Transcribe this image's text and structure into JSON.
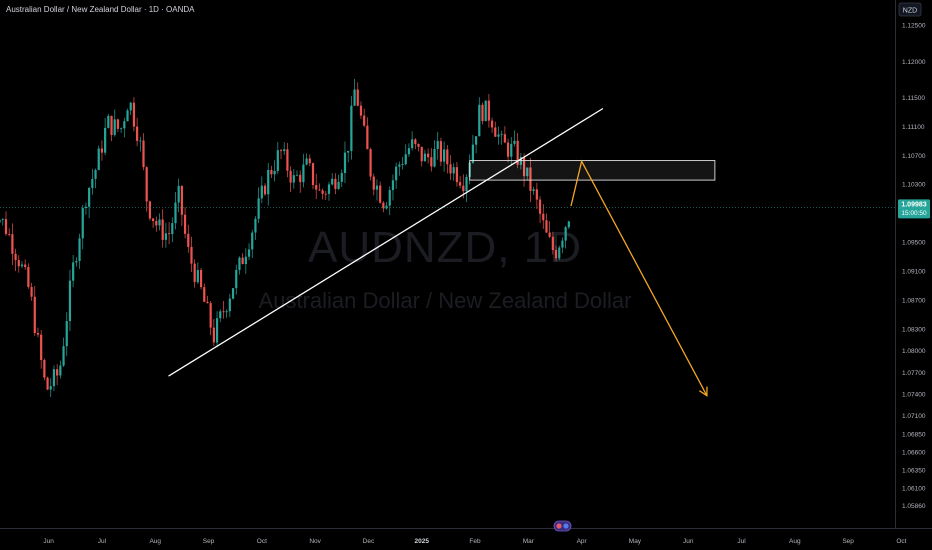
{
  "header": {
    "title": "Australian Dollar / New Zealand Dollar · 1D · OANDA",
    "currency_badge": "NZD"
  },
  "watermark": {
    "symbol": "AUDNZD, 1D",
    "name": "Australian Dollar / New Zealand Dollar"
  },
  "price_badge": {
    "price": "1.09983",
    "countdown": "15:00:50",
    "value": 1.09983
  },
  "colors": {
    "up": "#26a69a",
    "down": "#ef5350",
    "trendline": "#ffffff",
    "projection": "#f5a623",
    "badge": "#26a69a",
    "background": "#000000"
  },
  "chart_data": {
    "type": "candlestick",
    "title": "",
    "ylim": [
      1.0555,
      1.1285
    ],
    "y_ticks": [
      {
        "label": "1.12500",
        "value": 1.125
      },
      {
        "label": "1.12000",
        "value": 1.12
      },
      {
        "label": "1.11500",
        "value": 1.115
      },
      {
        "label": "1.11100",
        "value": 1.111
      },
      {
        "label": "1.10700",
        "value": 1.107
      },
      {
        "label": "1.10300",
        "value": 1.103
      },
      {
        "label": "1.09500",
        "value": 1.095
      },
      {
        "label": "1.09100",
        "value": 1.091
      },
      {
        "label": "1.08700",
        "value": 1.087
      },
      {
        "label": "1.08300",
        "value": 1.083
      },
      {
        "label": "1.08000",
        "value": 1.08
      },
      {
        "label": "1.07700",
        "value": 1.077
      },
      {
        "label": "1.07400",
        "value": 1.074
      },
      {
        "label": "1.07100",
        "value": 1.071
      },
      {
        "label": "1.06850",
        "value": 1.0685
      },
      {
        "label": "1.06600",
        "value": 1.066
      },
      {
        "label": "1.06350",
        "value": 1.0635
      },
      {
        "label": "1.06100",
        "value": 1.061
      },
      {
        "label": "1.05860",
        "value": 1.0586
      }
    ],
    "x_ticks": [
      {
        "label": "Jun",
        "t": 1.1,
        "bold": false
      },
      {
        "label": "Jul",
        "t": 2.1,
        "bold": false
      },
      {
        "label": "Aug",
        "t": 3.1,
        "bold": false
      },
      {
        "label": "Sep",
        "t": 4.1,
        "bold": false
      },
      {
        "label": "Oct",
        "t": 5.1,
        "bold": false
      },
      {
        "label": "Nov",
        "t": 6.1,
        "bold": false
      },
      {
        "label": "Dec",
        "t": 7.1,
        "bold": false
      },
      {
        "label": "2025",
        "t": 8.1,
        "bold": true
      },
      {
        "label": "Feb",
        "t": 9.1,
        "bold": false
      },
      {
        "label": "Mar",
        "t": 10.1,
        "bold": false
      },
      {
        "label": "Apr",
        "t": 11.1,
        "bold": false
      },
      {
        "label": "May",
        "t": 12.1,
        "bold": false
      },
      {
        "label": "Jun",
        "t": 13.1,
        "bold": false
      },
      {
        "label": "Jul",
        "t": 14.1,
        "bold": false
      },
      {
        "label": "Aug",
        "t": 15.1,
        "bold": false
      },
      {
        "label": "Sep",
        "t": 16.1,
        "bold": false
      },
      {
        "label": "Oct",
        "t": 17.1,
        "bold": false
      }
    ],
    "price_path": [
      [
        0.0,
        1.1005
      ],
      [
        0.3,
        1.097
      ],
      [
        0.55,
        1.0925
      ],
      [
        0.75,
        1.088
      ],
      [
        0.9,
        1.081
      ],
      [
        1.05,
        1.0745
      ],
      [
        1.3,
        1.077
      ],
      [
        1.55,
        1.091
      ],
      [
        1.8,
        1.1015
      ],
      [
        2.0,
        1.1055
      ],
      [
        2.2,
        1.1115
      ],
      [
        2.45,
        1.1105
      ],
      [
        2.6,
        1.115
      ],
      [
        2.8,
        1.1095
      ],
      [
        2.95,
        1.1005
      ],
      [
        3.15,
        1.097
      ],
      [
        3.35,
        1.096
      ],
      [
        3.55,
        1.1015
      ],
      [
        3.7,
        1.094
      ],
      [
        3.95,
        1.0885
      ],
      [
        4.2,
        1.082
      ],
      [
        4.45,
        1.087
      ],
      [
        4.7,
        1.092
      ],
      [
        4.95,
        1.0975
      ],
      [
        5.2,
        1.104
      ],
      [
        5.45,
        1.1075
      ],
      [
        5.7,
        1.1035
      ],
      [
        5.95,
        1.1055
      ],
      [
        6.2,
        1.1015
      ],
      [
        6.45,
        1.1035
      ],
      [
        6.7,
        1.1075
      ],
      [
        6.85,
        1.1165
      ],
      [
        6.95,
        1.1125
      ],
      [
        7.15,
        1.1045
      ],
      [
        7.4,
        1.1005
      ],
      [
        7.65,
        1.1055
      ],
      [
        7.9,
        1.1085
      ],
      [
        8.15,
        1.1065
      ],
      [
        8.4,
        1.1075
      ],
      [
        8.65,
        1.1055
      ],
      [
        8.9,
        1.1035
      ],
      [
        9.05,
        1.1085
      ],
      [
        9.2,
        1.1135
      ],
      [
        9.4,
        1.1125
      ],
      [
        9.6,
        1.1085
      ],
      [
        9.85,
        1.1075
      ],
      [
        10.05,
        1.1045
      ],
      [
        10.25,
        1.1005
      ],
      [
        10.45,
        1.0955
      ],
      [
        10.6,
        1.0935
      ],
      [
        10.75,
        1.0965
      ],
      [
        10.9,
        1.0998
      ]
    ],
    "annotations": {
      "trendline": {
        "from": [
          3.35,
          1.0765
        ],
        "to": [
          11.5,
          1.1135
        ]
      },
      "supply_zone": {
        "t0": 9.0,
        "t1": 13.6,
        "y_low": 1.1036,
        "y_high": 1.1063
      },
      "projection": {
        "points": [
          [
            10.9,
            1.1
          ],
          [
            11.1,
            1.1062
          ],
          [
            13.45,
            1.0738
          ]
        ]
      }
    }
  },
  "footer": {
    "center_icon": "tradingview-badge-icon"
  }
}
